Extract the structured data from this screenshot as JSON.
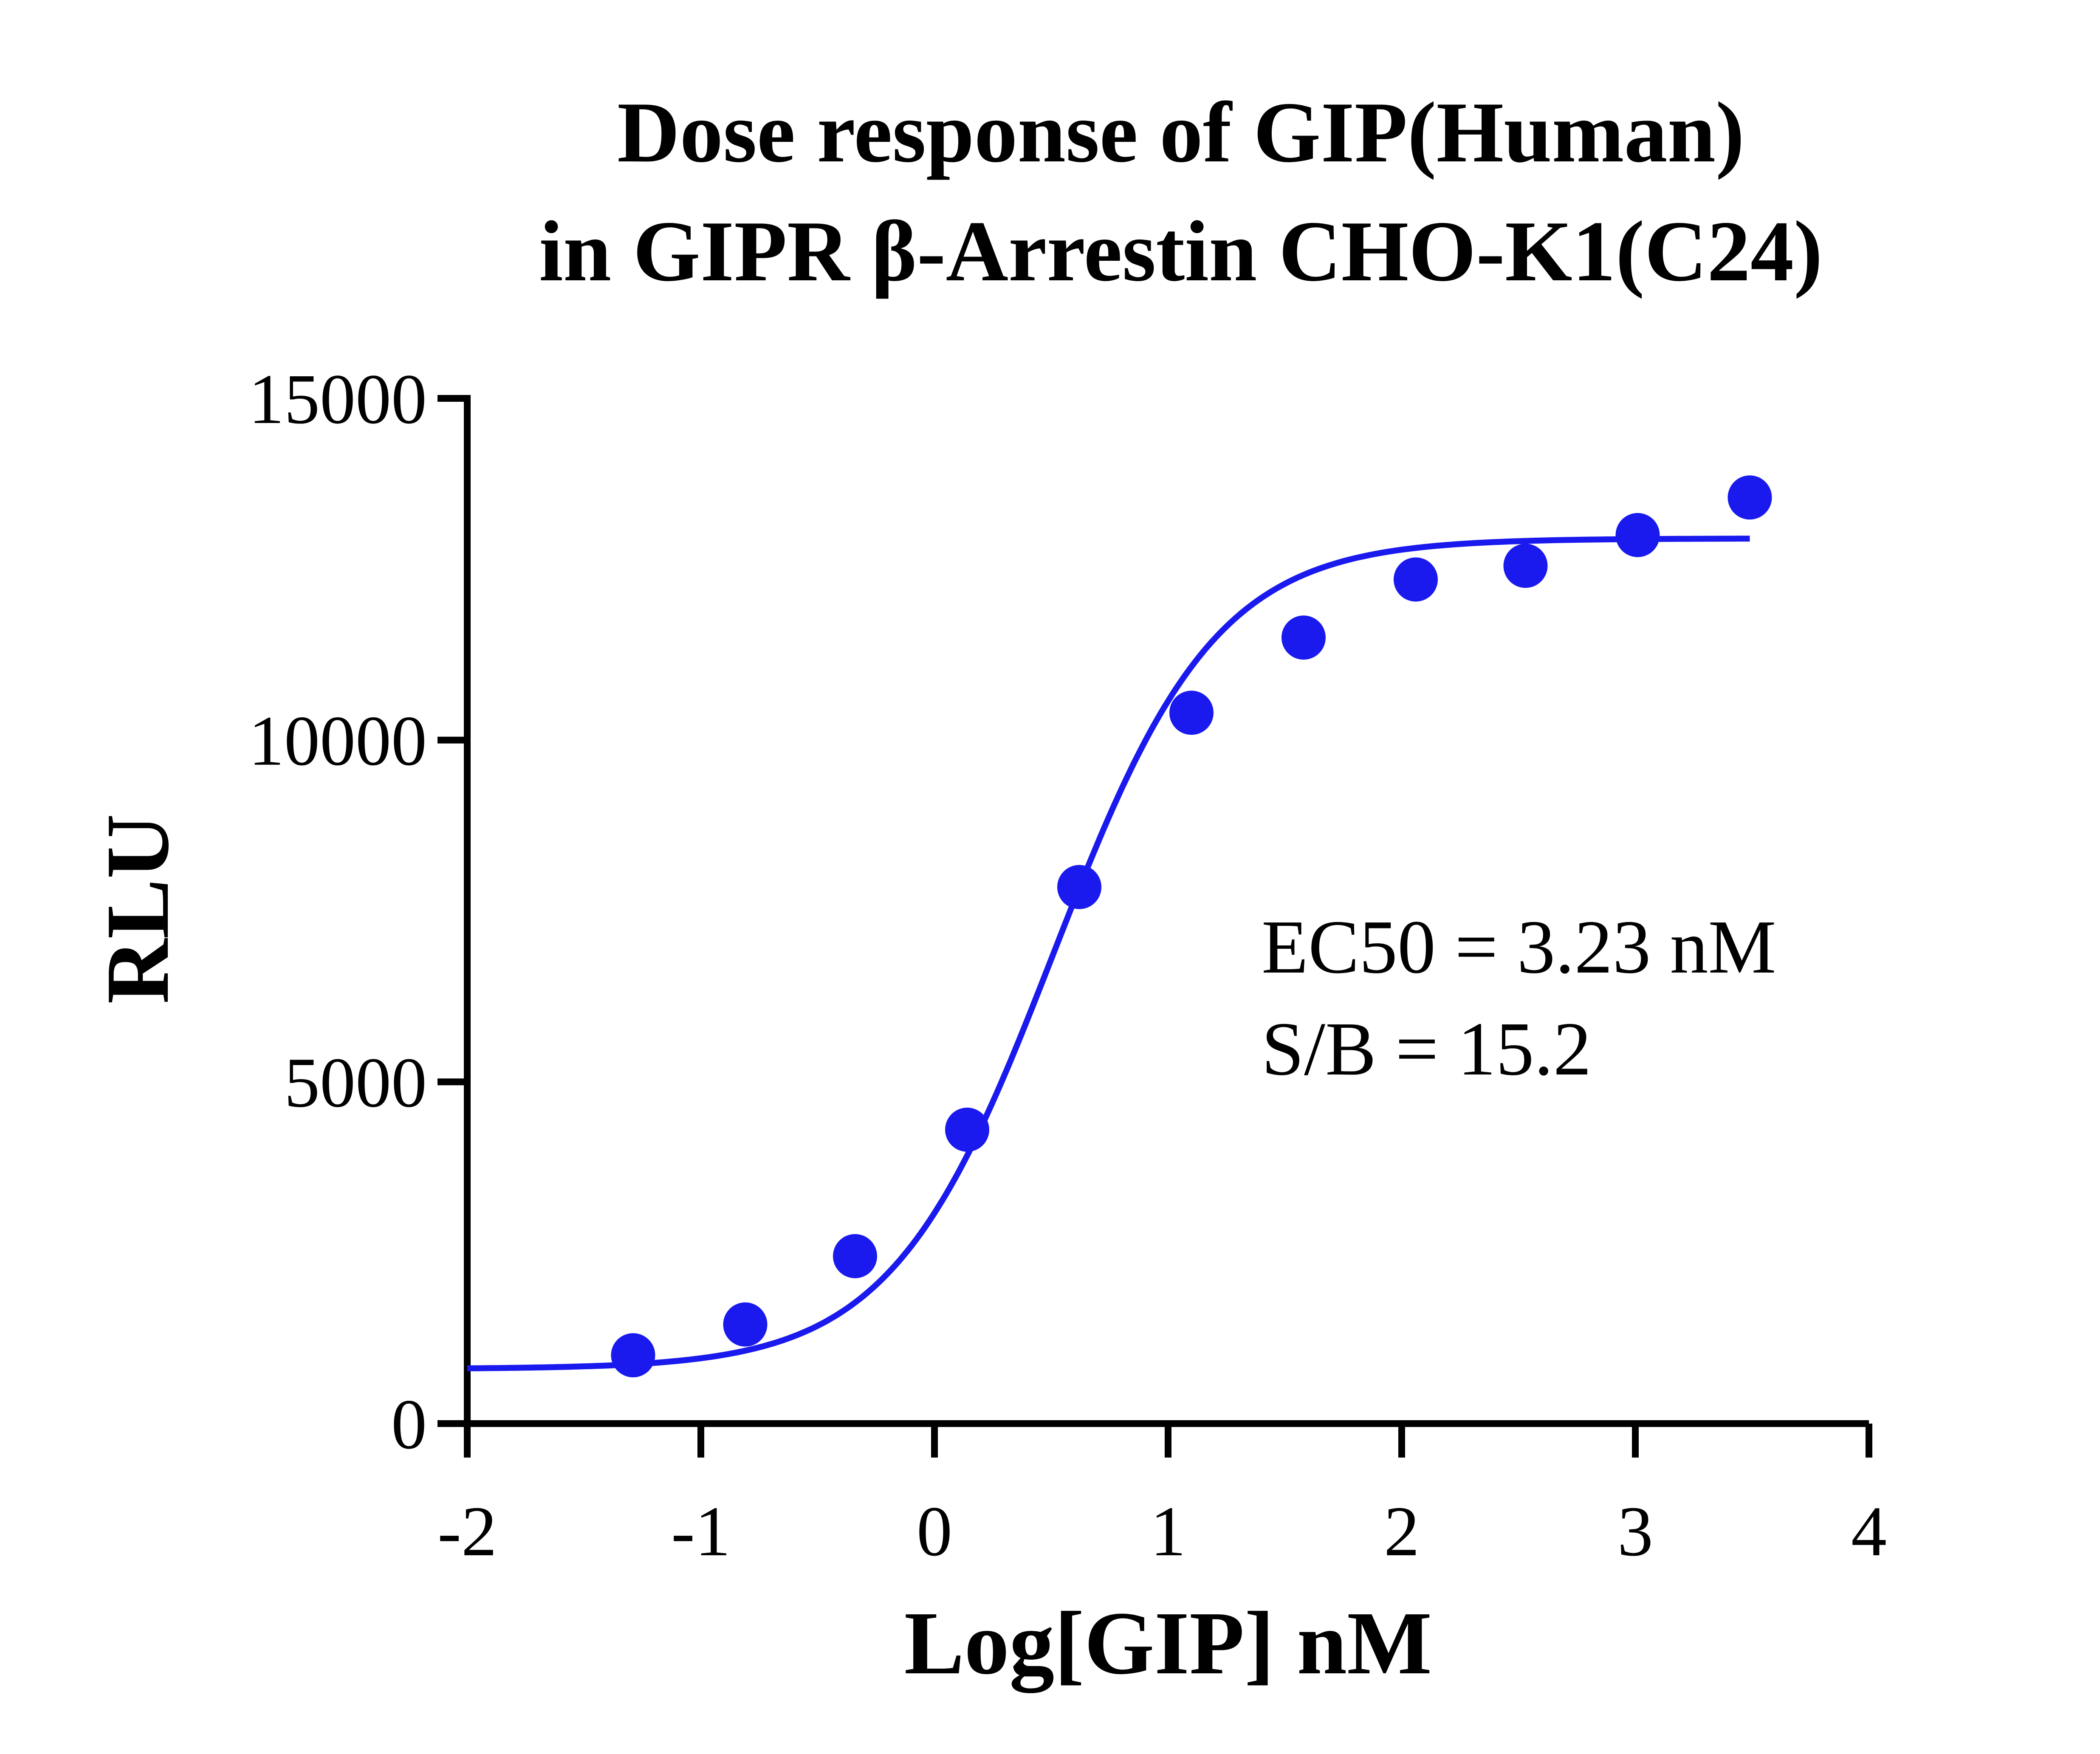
{
  "chart_data": {
    "type": "scatter",
    "title": [
      "Dose response of GIP(Human)",
      "in GIPR β-Arrestin CHO-K1(C24)"
    ],
    "xlabel": "Log[GIP] nM",
    "ylabel": "RLU",
    "xlim": [
      -2,
      4
    ],
    "ylim": [
      0,
      15000
    ],
    "x_ticks": [
      -2,
      -1,
      0,
      1,
      2,
      3,
      4
    ],
    "y_ticks": [
      0,
      5000,
      10000,
      15000
    ],
    "x_tick_labels": [
      "-2",
      "-1",
      "0",
      "1",
      "2",
      "3",
      "4"
    ],
    "y_tick_labels": [
      "0",
      "5000",
      "10000",
      "15000"
    ],
    "color": "#1a1aee",
    "points": [
      {
        "x": -1.29,
        "y": 1000
      },
      {
        "x": -0.81,
        "y": 1450
      },
      {
        "x": -0.34,
        "y": 2450
      },
      {
        "x": 0.14,
        "y": 4300
      },
      {
        "x": 0.62,
        "y": 7850
      },
      {
        "x": 1.1,
        "y": 10400
      },
      {
        "x": 1.58,
        "y": 11500
      },
      {
        "x": 2.06,
        "y": 12350
      },
      {
        "x": 2.53,
        "y": 12550
      },
      {
        "x": 3.01,
        "y": 13000
      },
      {
        "x": 3.49,
        "y": 13550
      }
    ],
    "fit": {
      "model": "four-parameter logistic",
      "bottom": 800,
      "top": 12950,
      "log_ec50": 0.509,
      "hill_slope": 1.25,
      "x_range": [
        -2,
        3.49
      ]
    },
    "grid": false,
    "legend": "none",
    "annotations": [
      "EC50 = 3.23 nM",
      "S/B = 15.2"
    ]
  }
}
